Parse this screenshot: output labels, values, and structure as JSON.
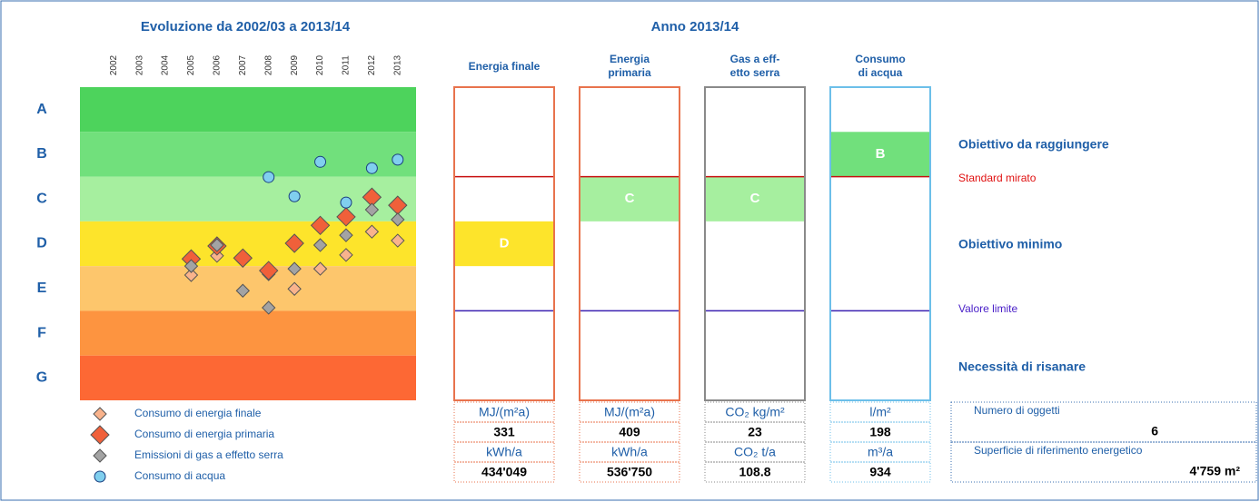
{
  "chart_data": {
    "type": "scatter",
    "title": "Evoluzione da 2002/03 a 2013/14",
    "categories": [
      "2002",
      "2003",
      "2004",
      "2005",
      "2006",
      "2007",
      "2008",
      "2009",
      "2010",
      "2011",
      "2012",
      "2013"
    ],
    "ylim": [
      0,
      7
    ],
    "yticks": [
      {
        "value": 6.5,
        "label": "A"
      },
      {
        "value": 5.5,
        "label": "B"
      },
      {
        "value": 4.5,
        "label": "C"
      },
      {
        "value": 3.5,
        "label": "D"
      },
      {
        "value": 2.5,
        "label": "E"
      },
      {
        "value": 1.5,
        "label": "F"
      },
      {
        "value": 0.5,
        "label": "G"
      }
    ],
    "band_colors": [
      "#4dd35c",
      "#71e07c",
      "#a6ef9f",
      "#fde42b",
      "#fdc66c",
      "#fd9440",
      "#fd6834"
    ],
    "series": [
      {
        "name": "Consumo di energia finale",
        "color": "#f9b38c",
        "marker": "diamond-small",
        "values": [
          null,
          null,
          null,
          2.8,
          3.23,
          3.12,
          2.82,
          2.49,
          2.94,
          3.25,
          3.77,
          3.57
        ]
      },
      {
        "name": "Consumo di energia primaria",
        "color": "#f0603a",
        "marker": "diamond-large",
        "values": [
          null,
          null,
          null,
          3.16,
          3.45,
          3.18,
          2.9,
          3.51,
          3.91,
          4.1,
          4.54,
          4.36
        ]
      },
      {
        "name": "Emissioni di gas a effetto serra",
        "color": "#a3a3a3",
        "marker": "diamond-small",
        "values": [
          null,
          null,
          null,
          3.0,
          3.47,
          2.45,
          2.07,
          2.94,
          3.47,
          3.69,
          4.26,
          4.04
        ]
      },
      {
        "name": "Consumo di acqua",
        "color": "#80cfee",
        "marker": "circle",
        "values": [
          null,
          null,
          null,
          null,
          null,
          null,
          4.99,
          4.56,
          5.33,
          4.42,
          5.19,
          5.38
        ]
      }
    ]
  },
  "panel": {
    "title": "Anno 2013/14",
    "columns": [
      {
        "header": [
          "Energia finale"
        ],
        "class": "D",
        "border": "#e8734d",
        "unit1": "MJ/(m²a)",
        "value1": "331",
        "unit2": "kWh/a",
        "value2": "434'049"
      },
      {
        "header": [
          "Energia",
          "primaria"
        ],
        "class": "C",
        "border": "#e8734d",
        "unit1": "MJ/(m²a)",
        "value1": "409",
        "unit2": "kWh/a",
        "value2": "536'750"
      },
      {
        "header": [
          "Gas a eff-",
          "etto serra"
        ],
        "class": "C",
        "border": "#8a8a8a",
        "unit1": "CO₂ kg/m²",
        "value1": "23",
        "unit2": "CO₂ t/a",
        "value2": "108.8"
      },
      {
        "header": [
          "Consumo",
          "di acqua"
        ],
        "class": "B",
        "border": "#6cbfe9",
        "unit1": "l/m²",
        "value1": "198",
        "unit2": "m³/a",
        "value2": "934"
      }
    ],
    "targets": {
      "goal": "Obiettivo da raggiungere",
      "standard": "Standard mirato",
      "minimum": "Obiettivo minimo",
      "limit": "Valore limite",
      "renovate": "Necessità di risanare"
    },
    "info": {
      "count_label": "Numero di oggetti",
      "count": "6",
      "area_label": "Superficie di riferimento energetico",
      "area": "4'759 m²"
    }
  }
}
